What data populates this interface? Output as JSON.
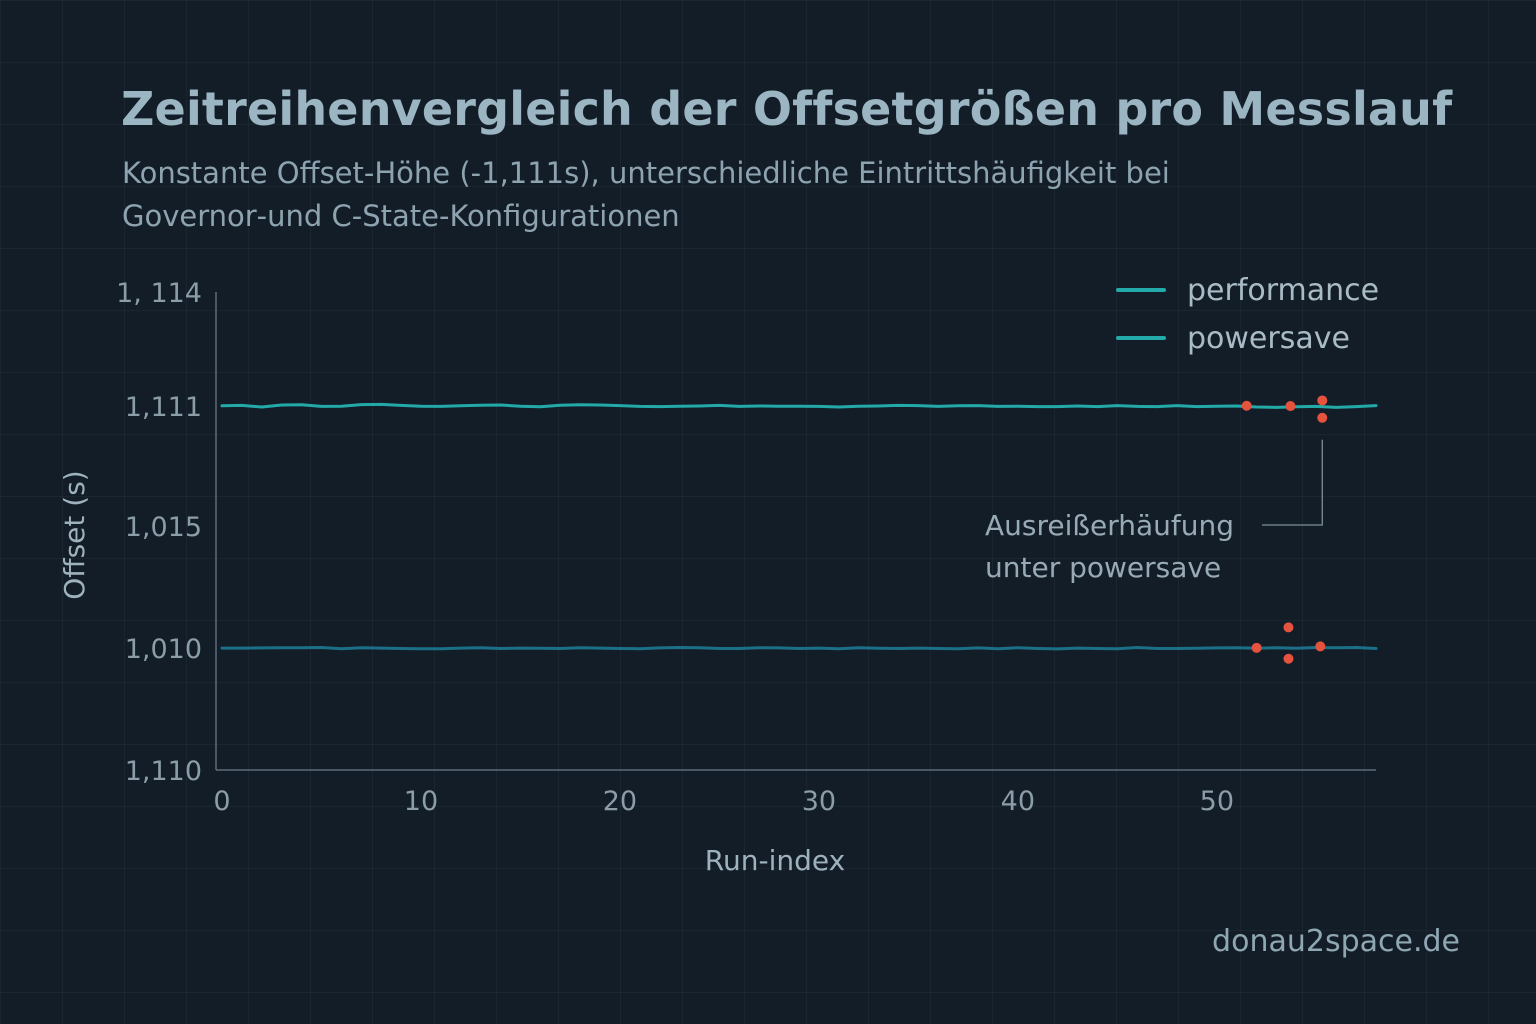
{
  "page": {
    "title": "Zeitreihenvergleich der Offsetgrößen pro Messlauf",
    "subtitle": "Konstante Offset-Höhe (-1,111s), unterschiedliche Eintrittshäufigkeit bei Governor‑und C-State-Konfigurationen",
    "footer": "donau2space.de"
  },
  "colors": {
    "background": "#131d28",
    "performance": "#23aaa8",
    "powersave": "#1b6f86",
    "outlier": "#e5533f",
    "axis": "#5c6b78"
  },
  "chart_data": {
    "type": "line",
    "xlabel": "Run-index",
    "ylabel": "Offset (s)",
    "xlim": [
      0,
      58
    ],
    "x_ticks": [
      {
        "value": 0,
        "label": "0"
      },
      {
        "value": 10,
        "label": "10"
      },
      {
        "value": 20,
        "label": "20"
      },
      {
        "value": 30,
        "label": "30"
      },
      {
        "value": 40,
        "label": "40"
      },
      {
        "value": 50,
        "label": "50"
      }
    ],
    "y_ticks": [
      {
        "label": "1, 114",
        "level": 0.0
      },
      {
        "label": "1,111",
        "level": 0.238
      },
      {
        "label": "1,015",
        "level": 0.49
      },
      {
        "label": "1,010",
        "level": 0.745
      },
      {
        "label": "1,110",
        "level": 1.0
      }
    ],
    "legend": {
      "position": "top-right",
      "entries": [
        {
          "name": "performance",
          "color": "#23aaa8"
        },
        {
          "name": "powersave",
          "color": "#23aaa8"
        }
      ]
    },
    "series": [
      {
        "name": "performance",
        "color": "#23aaa8",
        "level": 0.238,
        "x": [
          0,
          1,
          2,
          3,
          4,
          5,
          6,
          7,
          8,
          9,
          10,
          11,
          12,
          13,
          14,
          15,
          16,
          17,
          18,
          19,
          20,
          21,
          22,
          23,
          24,
          25,
          26,
          27,
          28,
          29,
          30,
          31,
          32,
          33,
          34,
          35,
          36,
          37,
          38,
          39,
          40,
          41,
          42,
          43,
          44,
          45,
          46,
          47,
          48,
          49,
          50,
          51,
          52,
          53,
          54,
          55,
          56,
          57,
          58
        ],
        "y": [
          0,
          -0.2,
          0.6,
          -0.4,
          -0.5,
          0.3,
          0.2,
          -0.6,
          -0.7,
          -0.2,
          0.2,
          0.3,
          0,
          -0.3,
          -0.4,
          0.2,
          0.5,
          -0.3,
          -0.5,
          -0.4,
          -0.1,
          0.3,
          0.4,
          0.2,
          0.1,
          -0.2,
          0.3,
          0.1,
          0.2,
          0.2,
          0.3,
          0.6,
          0.2,
          0.1,
          -0.2,
          -0.1,
          0.3,
          0,
          -0.1,
          0.3,
          0.2,
          0.4,
          0.4,
          0.1,
          0.4,
          -0.1,
          0.3,
          0.4,
          -0.1,
          0.4,
          0.2,
          0.1,
          0.6,
          0.8,
          0.5,
          0.3,
          0.8,
          0.4,
          -0.1
        ]
      },
      {
        "name": "powersave",
        "color": "#1b6f86",
        "level": 0.745,
        "x": [
          0,
          1,
          2,
          3,
          4,
          5,
          6,
          7,
          8,
          9,
          10,
          11,
          12,
          13,
          14,
          15,
          16,
          17,
          18,
          19,
          20,
          21,
          22,
          23,
          24,
          25,
          26,
          27,
          28,
          29,
          30,
          31,
          32,
          33,
          34,
          35,
          36,
          37,
          38,
          39,
          40,
          41,
          42,
          43,
          44,
          45,
          46,
          47,
          48,
          49,
          50,
          51,
          52,
          53,
          54,
          55,
          56,
          57,
          58
        ],
        "y": [
          0,
          0,
          -0.1,
          -0.2,
          -0.2,
          -0.3,
          0.3,
          -0.2,
          0,
          0.2,
          0.3,
          0.3,
          0,
          -0.2,
          0.2,
          0,
          0.1,
          0.2,
          -0.2,
          0,
          0.2,
          0.3,
          -0.1,
          -0.3,
          -0.2,
          0.2,
          0.2,
          -0.2,
          -0.1,
          0.2,
          0,
          0.3,
          -0.2,
          0.1,
          0.2,
          0,
          0.2,
          0.3,
          -0.1,
          0.3,
          -0.2,
          0.2,
          0.4,
          0,
          0.2,
          0.3,
          -0.3,
          0.2,
          0.2,
          0.1,
          -0.1,
          -0.2,
          0.1,
          -0.2,
          0.1,
          -0.3,
          -0.2,
          -0.3,
          0.2
        ]
      }
    ],
    "outliers": [
      {
        "series": "performance",
        "x": 51.5,
        "offset": 0
      },
      {
        "series": "performance",
        "x": 53.7,
        "offset": 0.1
      },
      {
        "series": "performance",
        "x": 55.3,
        "offset": -1.9
      },
      {
        "series": "performance",
        "x": 55.3,
        "offset": 4.3
      },
      {
        "series": "powersave",
        "x": 52.0,
        "offset": -0.1
      },
      {
        "series": "powersave",
        "x": 53.6,
        "offset": -7.4
      },
      {
        "series": "powersave",
        "x": 53.6,
        "offset": 3.8
      },
      {
        "series": "powersave",
        "x": 55.2,
        "offset": -0.6
      }
    ],
    "annotation": {
      "lines": [
        "Ausreißerhäufung",
        "unter powersave"
      ],
      "target_series": "performance",
      "target_x": 55.3
    }
  }
}
